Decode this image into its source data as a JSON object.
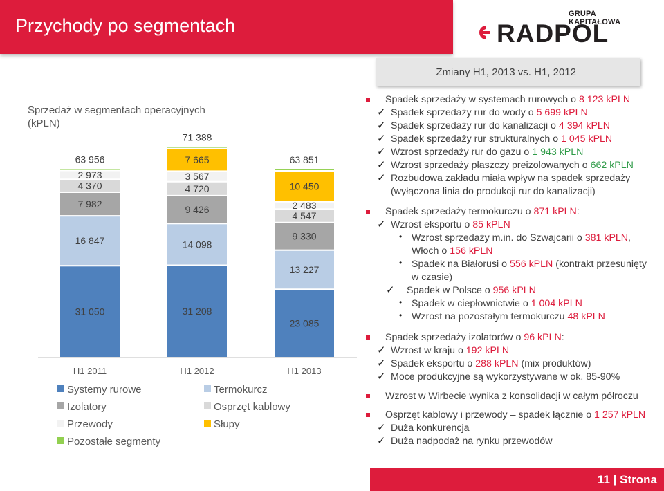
{
  "header": {
    "title": "Przychody po segmentach",
    "logo_group": "GRUPA KAPITAŁOWA",
    "logo_name": "RADPOL",
    "brand_color": "#dd1c3c"
  },
  "changes_label": "Zmiany H1, 2013 vs. H1, 2012",
  "chart_subtitle": "Sprzedaż w segmentach operacyjnych (kPLN)",
  "chart_data": {
    "type": "bar",
    "stacked": true,
    "categories": [
      "H1 2011",
      "H1 2012",
      "H1 2013"
    ],
    "totals": [
      "63 956",
      "71 388",
      "63 851"
    ],
    "series": [
      {
        "name": "Systemy rurowe",
        "color": "#4f81bd",
        "values": [
          31050,
          31208,
          23085
        ],
        "labels": [
          "31 050",
          "31 208",
          "23 085"
        ]
      },
      {
        "name": "Termokurcz",
        "color": "#b9cde5",
        "values": [
          16847,
          14098,
          13227
        ],
        "labels": [
          "16 847",
          "14 098",
          "13 227"
        ]
      },
      {
        "name": "Izolatory",
        "color": "#a6a6a6",
        "values": [
          7982,
          9426,
          9330
        ],
        "labels": [
          "7 982",
          "9 426",
          "9 330"
        ]
      },
      {
        "name": "Osprzęt kablowy",
        "color": "#d9d9d9",
        "values": [
          4370,
          4720,
          4547
        ],
        "labels": [
          "4 370",
          "4 720",
          "4 547"
        ]
      },
      {
        "name": "Przewody",
        "color": "#f2f2f2",
        "values": [
          2973,
          3567,
          2483
        ],
        "labels": [
          "2 973",
          "3 567",
          "2 483"
        ]
      },
      {
        "name": "Słupy",
        "color": "#ffc000",
        "values": [
          0,
          7665,
          10450
        ],
        "labels": [
          "",
          "7 665",
          "10 450"
        ]
      },
      {
        "name": "Pozostałe segmenty",
        "color": "#92d050",
        "values": [
          734,
          704,
          729
        ],
        "labels": [
          "",
          "",
          ""
        ]
      }
    ],
    "legend_order": [
      "Systemy rurowe",
      "Termokurcz",
      "Izolatory",
      "Osprzęt kablowy",
      "Przewody",
      "Słupy",
      "Pozostałe segmenty"
    ],
    "legend_position": "bottom",
    "grid": false
  },
  "bullets": [
    {
      "type": "square",
      "parts": [
        "Spadek sprzedaży w systemach rurowych o ",
        "8 123 kPLN"
      ]
    },
    {
      "type": "check",
      "parts": [
        "Spadek sprzedaży rur do wody o ",
        "5 699 kPLN"
      ]
    },
    {
      "type": "check",
      "parts": [
        "Spadek sprzedaży rur do kanalizacji o ",
        "4 394 kPLN"
      ]
    },
    {
      "type": "check",
      "parts": [
        "Spadek sprzedaży rur strukturalnych o ",
        "1 045 kPLN"
      ]
    },
    {
      "type": "check",
      "green": true,
      "parts": [
        "Wzrost sprzedaży rur do gazu o ",
        "1 943 kPLN"
      ]
    },
    {
      "type": "check",
      "green": true,
      "parts": [
        "Wzrost sprzedaży płaszczy preizolowanych o ",
        "662 kPLN"
      ]
    },
    {
      "type": "check",
      "parts": [
        "Rozbudowa zakładu miała wpływ na spadek sprzedaży",
        ""
      ]
    },
    {
      "type": "cont",
      "parts": [
        "(wyłączona linia do produkcji rur do kanalizacji)",
        ""
      ]
    },
    {
      "type": "square",
      "parts": [
        "Spadek sprzedaży termokurczu o ",
        "871 kPLN",
        ":"
      ]
    },
    {
      "type": "check",
      "parts": [
        "Wzrost eksportu o ",
        "85 kPLN"
      ]
    },
    {
      "type": "dot",
      "parts": [
        "Wzrost sprzedaży m.in. do Szwajcarii o ",
        "381 kPLN",
        ","
      ]
    },
    {
      "type": "cont2",
      "parts": [
        "Włoch o ",
        "156 kPLN"
      ]
    },
    {
      "type": "dot",
      "parts": [
        "Spadek na Białorusi o ",
        "556 kPLN",
        " (kontrakt przesunięty"
      ]
    },
    {
      "type": "cont2",
      "parts": [
        "w czasie)",
        ""
      ]
    },
    {
      "type": "check2",
      "parts": [
        "Spadek  w Polsce o ",
        "956 kPLN"
      ]
    },
    {
      "type": "dot",
      "parts": [
        "Spadek w ciepłownictwie o ",
        "1 004 kPLN"
      ]
    },
    {
      "type": "dot",
      "parts": [
        "Wzrost na pozostałym termokurczu ",
        "48 kPLN"
      ]
    },
    {
      "type": "square",
      "parts": [
        "Spadek sprzedaży izolatorów o ",
        "96 kPLN",
        ":"
      ]
    },
    {
      "type": "check",
      "parts": [
        "Wzrost w kraju o  ",
        "192 kPLN"
      ]
    },
    {
      "type": "check",
      "parts": [
        "Spadek eksportu o  ",
        "288 kPLN",
        " (mix produktów)"
      ]
    },
    {
      "type": "check",
      "parts": [
        "Moce produkcyjne są wykorzystywane w ok. 85-90%",
        ""
      ]
    },
    {
      "type": "square",
      "parts": [
        "Wzrost w Wirbecie wynika z konsolidacji w całym półroczu",
        ""
      ]
    },
    {
      "type": "square",
      "parts": [
        "Osprzęt kablowy i przewody – spadek łącznie o ",
        "1 257 kPLN"
      ]
    },
    {
      "type": "check",
      "parts": [
        "Duża konkurencja",
        ""
      ]
    },
    {
      "type": "check",
      "parts": [
        "Duża nadpodaż na rynku przewodów",
        ""
      ]
    }
  ],
  "footer": {
    "page_number": "11",
    "separator": "|",
    "page_word": "Strona"
  }
}
